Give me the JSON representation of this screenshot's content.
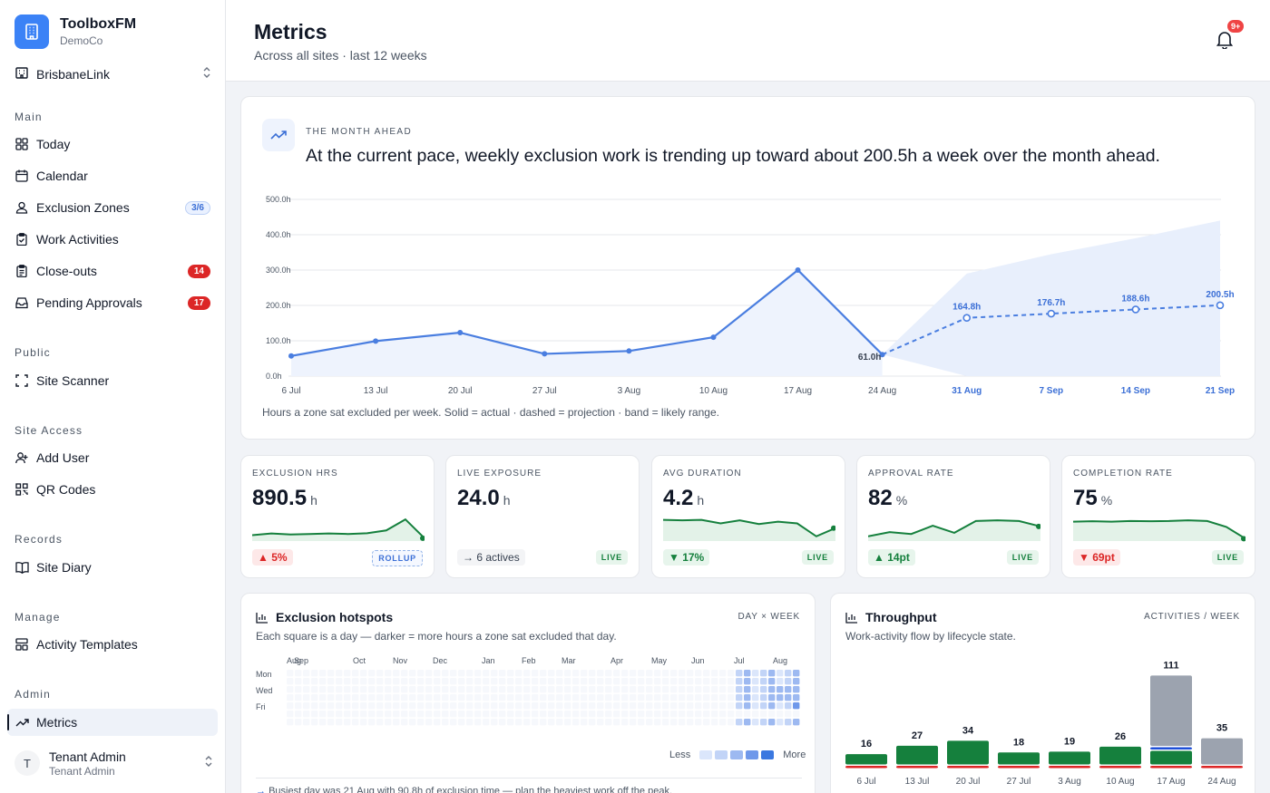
{
  "brand": {
    "name": "ToolboxFM",
    "org": "DemoCo"
  },
  "site": {
    "name": "BrisbaneLink"
  },
  "sidebar": {
    "sections": [
      {
        "title": "Main"
      },
      {
        "title": "Public"
      },
      {
        "title": "Site Access"
      },
      {
        "title": "Records"
      },
      {
        "title": "Manage"
      },
      {
        "title": "Admin"
      }
    ],
    "items": [
      {
        "label": "Today",
        "icon": "grid-icon"
      },
      {
        "label": "Calendar",
        "icon": "calendar-icon"
      },
      {
        "label": "Exclusion Zones",
        "icon": "user-zone-icon",
        "badge": "3/6"
      },
      {
        "label": "Work Activities",
        "icon": "clipboard-check-icon"
      },
      {
        "label": "Close-outs",
        "icon": "clipboard-list-icon",
        "badge": "14"
      },
      {
        "label": "Pending Approvals",
        "icon": "inbox-icon",
        "badge": "17"
      },
      {
        "label": "Site Scanner",
        "icon": "scan-icon"
      },
      {
        "label": "Add User",
        "icon": "user-plus-icon"
      },
      {
        "label": "QR Codes",
        "icon": "qr-icon"
      },
      {
        "label": "Site Diary",
        "icon": "book-icon"
      },
      {
        "label": "Activity Templates",
        "icon": "template-icon"
      },
      {
        "label": "Metrics",
        "icon": "trend-icon"
      }
    ]
  },
  "user": {
    "initial": "T",
    "name": "Tenant Admin",
    "role": "Tenant Admin"
  },
  "header": {
    "title": "Metrics",
    "subtitle": "Across all sites · last 12 weeks",
    "notifications": "9+"
  },
  "forecast": {
    "kicker": "THE MONTH AHEAD",
    "headline": "At the current pace, weekly exclusion work is trending up toward about 200.5h a week over the month ahead.",
    "caption": "Hours a zone sat excluded per week. Solid = actual · dashed = projection · band = likely range."
  },
  "chart_data": [
    {
      "type": "line",
      "ylim": [
        0,
        500
      ],
      "y_ticks": [
        "0.0h",
        "100.0h",
        "200.0h",
        "300.0h",
        "400.0h",
        "500.0h"
      ],
      "x": [
        "6 Jul",
        "13 Jul",
        "20 Jul",
        "27 Jul",
        "3 Aug",
        "10 Aug",
        "17 Aug",
        "24 Aug",
        "31 Aug",
        "7 Sep",
        "14 Sep",
        "21 Sep"
      ],
      "series": [
        {
          "name": "actual",
          "values": [
            57,
            99,
            123,
            63,
            71,
            110,
            300,
            61,
            null,
            null,
            null,
            null
          ]
        },
        {
          "name": "projection",
          "values": [
            null,
            null,
            null,
            null,
            null,
            null,
            null,
            61,
            164.8,
            176.7,
            188.6,
            200.5
          ]
        }
      ],
      "band": {
        "low": [
          null,
          null,
          null,
          null,
          null,
          null,
          null,
          61,
          0,
          0,
          0,
          0
        ],
        "high": [
          null,
          null,
          null,
          null,
          null,
          null,
          null,
          61,
          290,
          345,
          390,
          440
        ]
      },
      "point_labels": [
        "61.0h",
        "164.8h",
        "176.7h",
        "188.6h",
        "200.5h"
      ]
    },
    {
      "type": "bar",
      "title": "Throughput",
      "categories": [
        "6 Jul",
        "13 Jul",
        "20 Jul",
        "27 Jul",
        "3 Aug",
        "10 Aug",
        "17 Aug",
        "24 Aug"
      ],
      "totals": [
        16,
        27,
        34,
        18,
        19,
        26,
        111,
        35
      ],
      "series": [
        {
          "color": "#dc2626",
          "values": [
            2,
            3,
            4,
            2,
            2,
            3,
            3,
            2
          ]
        },
        {
          "color": "#15803d",
          "values": [
            14,
            24,
            30,
            16,
            17,
            23,
            18,
            0
          ]
        },
        {
          "color": "#1d4ed8",
          "values": [
            0,
            0,
            0,
            0,
            0,
            0,
            4,
            0
          ]
        },
        {
          "color": "#9ca3af",
          "values": [
            0,
            0,
            0,
            0,
            0,
            0,
            86,
            33
          ]
        }
      ]
    }
  ],
  "kpis": [
    {
      "label": "EXCLUSION HRS",
      "value": "890.5",
      "unit": "h",
      "delta": "▲ 5%",
      "delta_style": "up-red",
      "tag": "ROLLUP",
      "tag_style": "rollup",
      "spark": [
        0.25,
        0.32,
        0.28,
        0.3,
        0.32,
        0.3,
        0.33,
        0.45,
        0.92,
        0.12
      ]
    },
    {
      "label": "LIVE EXPOSURE",
      "value": "24.0",
      "unit": "h",
      "delta": "→ 6 actives",
      "delta_style": "neutral",
      "tag": "LIVE",
      "tag_style": "live",
      "spark": []
    },
    {
      "label": "AVG DURATION",
      "value": "4.2",
      "unit": "h",
      "delta": "▼ 17%",
      "delta_style": "down-green",
      "tag": "LIVE",
      "tag_style": "live",
      "spark": [
        0.9,
        0.88,
        0.9,
        0.75,
        0.88,
        0.72,
        0.82,
        0.75,
        0.2,
        0.55
      ]
    },
    {
      "label": "APPROVAL RATE",
      "value": "82",
      "unit": "%",
      "delta": "▲ 14pt",
      "delta_style": "up-green",
      "tag": "LIVE",
      "tag_style": "live",
      "spark": [
        0.2,
        0.38,
        0.3,
        0.65,
        0.35,
        0.85,
        0.88,
        0.85,
        0.62
      ]
    },
    {
      "label": "COMPLETION RATE",
      "value": "75",
      "unit": "%",
      "delta": "▼ 69pt",
      "delta_style": "down-red",
      "tag": "LIVE",
      "tag_style": "live",
      "spark": [
        0.82,
        0.84,
        0.82,
        0.85,
        0.84,
        0.85,
        0.88,
        0.85,
        0.6,
        0.1
      ]
    }
  ],
  "hotspots": {
    "title": "Exclusion hotspots",
    "tag": "DAY × WEEK",
    "subtitle": "Each square is a day — darker = more hours a zone sat excluded that day.",
    "months": [
      "Aug",
      "Sep",
      "Oct",
      "Nov",
      "Dec",
      "Jan",
      "Feb",
      "Mar",
      "Apr",
      "May",
      "Jun",
      "Jul",
      "Aug"
    ],
    "days": [
      "Mon",
      "Wed",
      "Fri"
    ],
    "legend_less": "Less",
    "legend_more": "More",
    "note": "Busiest day was 21 Aug with 90.8h of exclusion time — plan the heaviest work off the peak."
  },
  "throughput": {
    "title": "Throughput",
    "tag": "ACTIVITIES / WEEK",
    "subtitle": "Work-activity flow by lifecycle state."
  },
  "colors": {
    "accent": "#3b82f6",
    "line": "#4a7ee0",
    "band": "#e8effc",
    "green": "#15803d",
    "red": "#dc2626"
  }
}
